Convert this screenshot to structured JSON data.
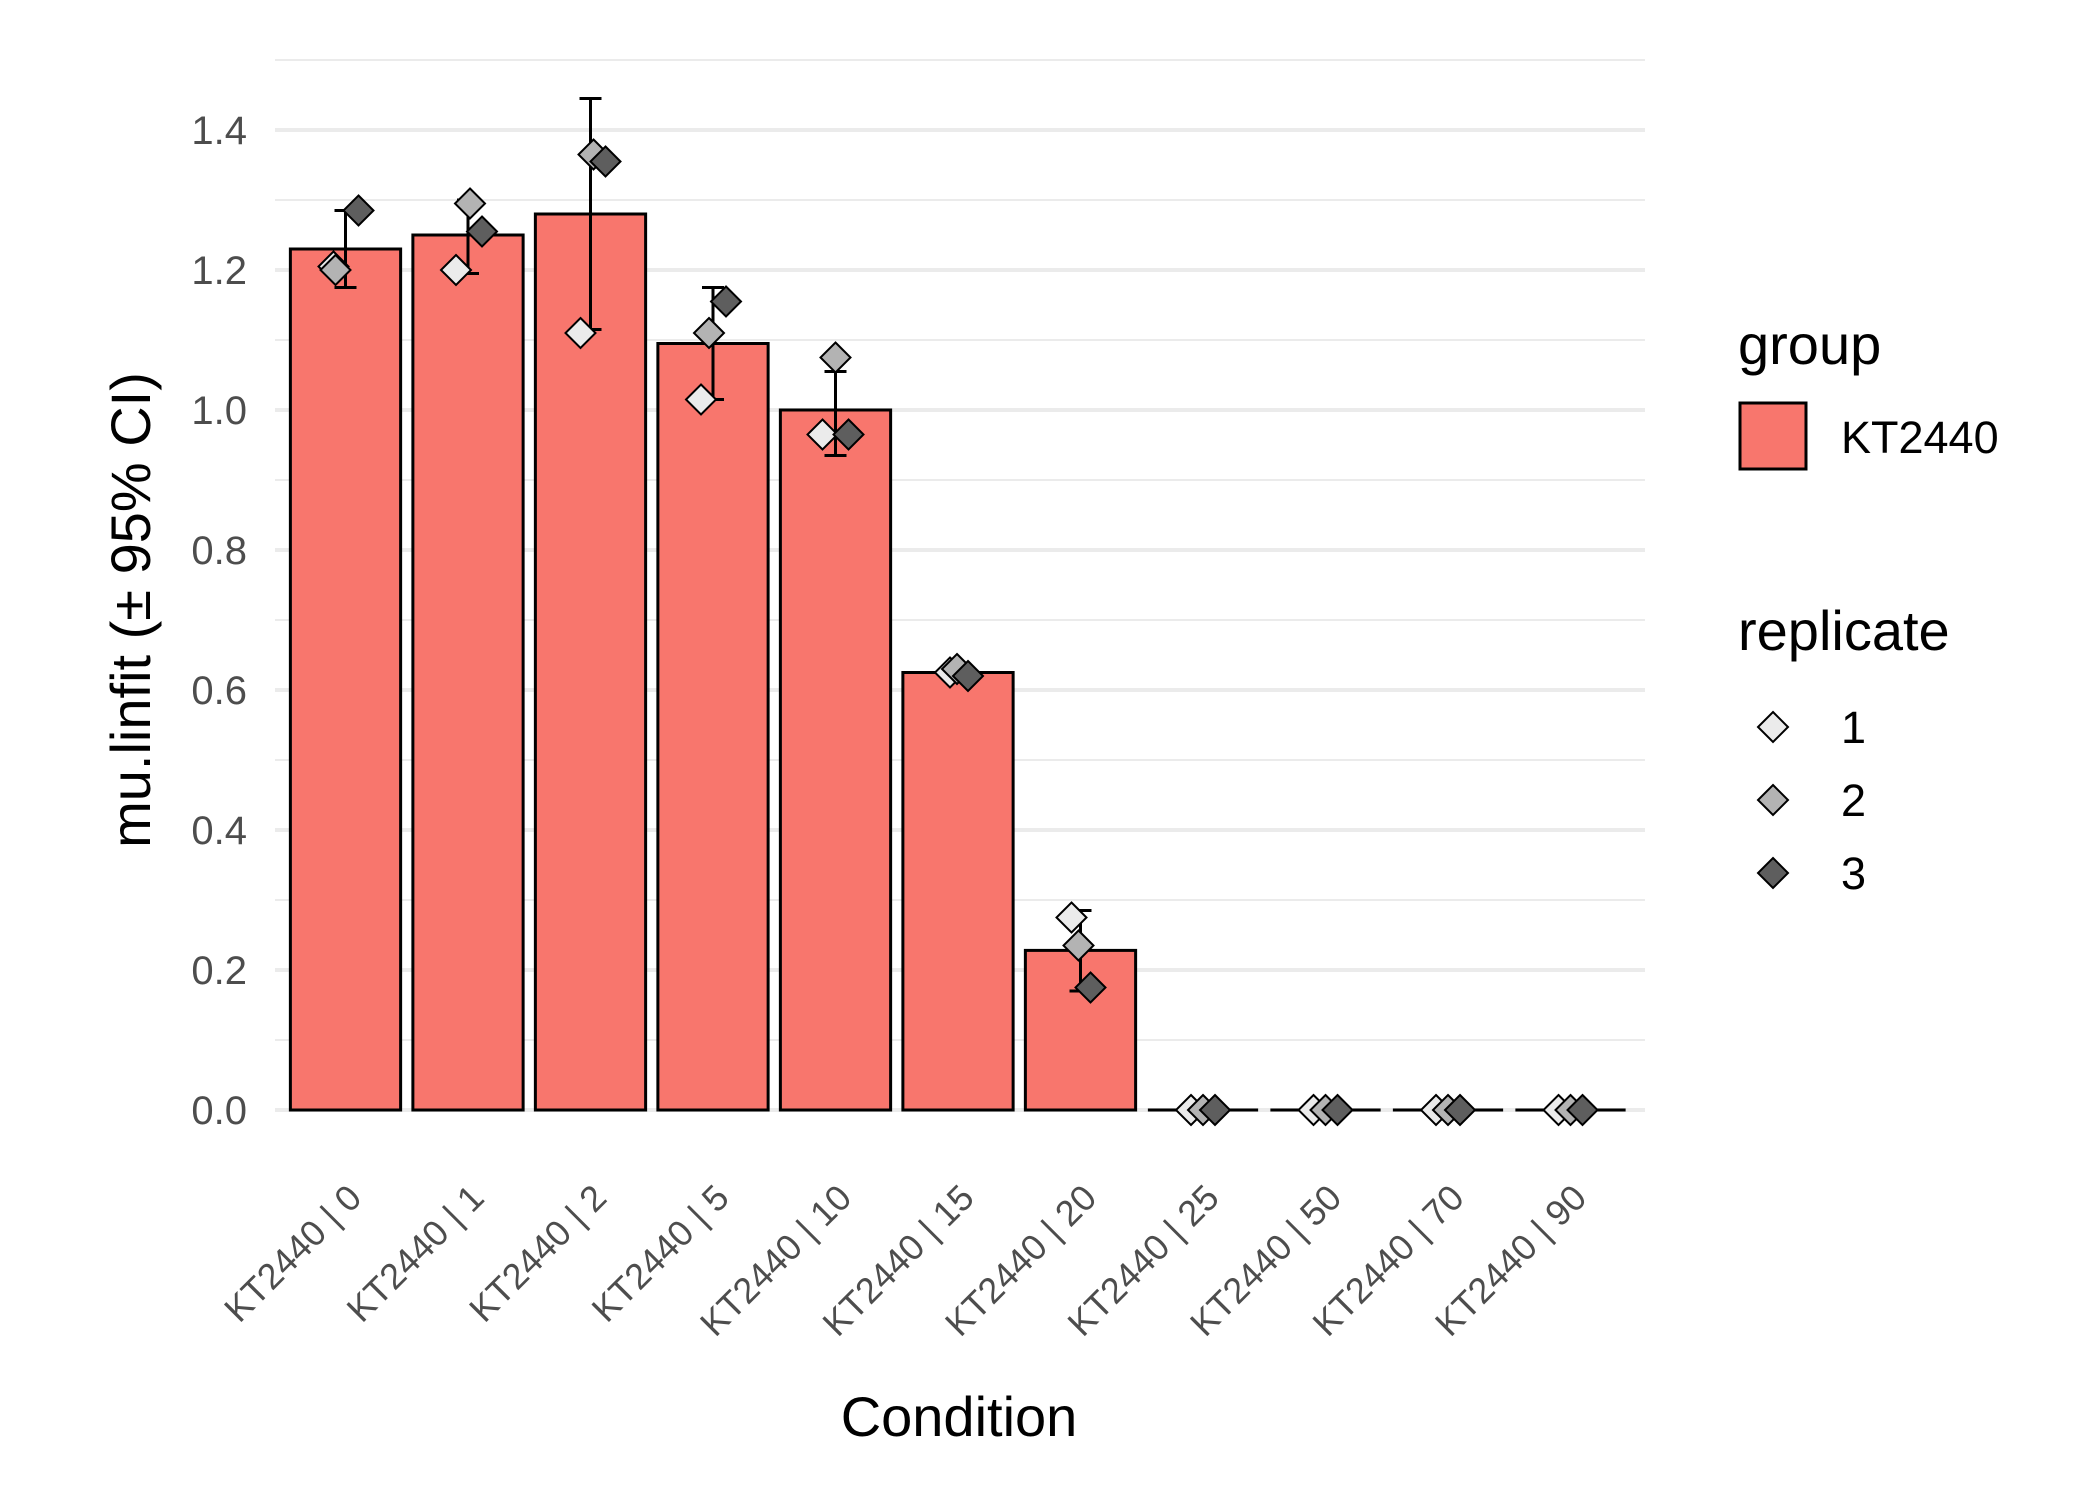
{
  "chart_data": {
    "type": "bar",
    "title": "",
    "xlabel": "Condition",
    "ylabel": "mu.linfit (± 95% CI)",
    "ylim": [
      -0.1,
      1.5
    ],
    "yticks": [
      0.0,
      0.2,
      0.4,
      0.6,
      0.8,
      1.0,
      1.2,
      1.4
    ],
    "ytick_labels": [
      "0.0",
      "0.2",
      "0.4",
      "0.6",
      "0.8",
      "1.0",
      "1.2",
      "1.4"
    ],
    "grid": true,
    "categories": [
      "KT2440 | 0",
      "KT2440 | 1",
      "KT2440 | 2",
      "KT2440 | 5",
      "KT2440 | 10",
      "KT2440 | 15",
      "KT2440 | 20",
      "KT2440 | 25",
      "KT2440 | 50",
      "KT2440 | 70",
      "KT2440 | 90"
    ],
    "series": [
      {
        "name": "KT2440",
        "color": "#F8766D",
        "values": [
          1.23,
          1.25,
          1.28,
          1.095,
          1.0,
          0.625,
          0.228,
          0.0,
          0.0,
          0.0,
          0.0
        ],
        "ci_low": [
          1.175,
          1.195,
          1.115,
          1.015,
          0.935,
          0.62,
          0.17,
          0.0,
          0.0,
          0.0,
          0.0
        ],
        "ci_high": [
          1.285,
          1.3,
          1.445,
          1.175,
          1.055,
          0.635,
          0.285,
          0.0,
          0.0,
          0.0,
          0.0
        ]
      }
    ],
    "replicates": [
      {
        "name": "1",
        "color": "#EBEBEB",
        "values": [
          1.205,
          1.2,
          1.11,
          1.015,
          0.965,
          0.625,
          0.275,
          0.0,
          0.0,
          0.0,
          0.0
        ]
      },
      {
        "name": "2",
        "color": "#B3B3B3",
        "values": [
          1.2,
          1.295,
          1.365,
          1.11,
          1.075,
          0.63,
          0.235,
          0.0,
          0.0,
          0.0,
          0.0
        ]
      },
      {
        "name": "3",
        "color": "#5E5E5E",
        "values": [
          1.285,
          1.255,
          1.355,
          1.155,
          0.965,
          0.62,
          0.175,
          0.0,
          0.0,
          0.0,
          0.0
        ]
      }
    ],
    "legend": {
      "placement": "right",
      "group_title": "group",
      "group_entries": [
        "KT2440"
      ],
      "replicate_title": "replicate",
      "replicate_entries": [
        "1",
        "2",
        "3"
      ]
    }
  }
}
